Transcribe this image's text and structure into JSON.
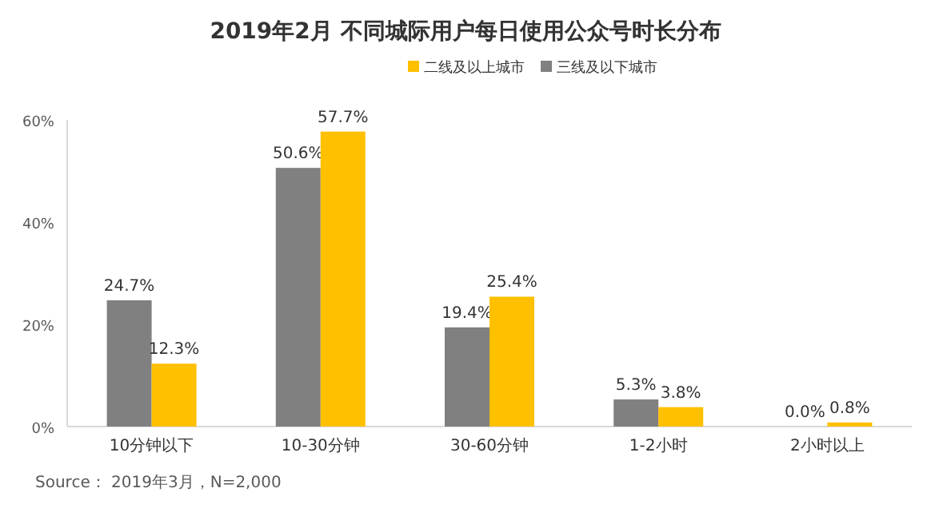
{
  "chart_data": {
    "type": "bar",
    "title": "2019年2月 不同城际用户每日使用公众号时长分布",
    "categories": [
      "10分钟以下",
      "10-30分钟",
      "30-60分钟",
      "1-2小时",
      "2小时以上"
    ],
    "series": [
      {
        "name": "三线及以下城市",
        "color": "#808080",
        "values": [
          24.7,
          50.6,
          19.4,
          5.3,
          0.0
        ]
      },
      {
        "name": "二线及以上城市",
        "color": "#ffc000",
        "values": [
          12.3,
          57.7,
          25.4,
          3.8,
          0.8
        ]
      }
    ],
    "value_labels": [
      [
        "24.7%",
        "50.6%",
        "19.4%",
        "5.3%",
        "0.0%"
      ],
      [
        "12.3%",
        "57.7%",
        "25.4%",
        "3.8%",
        "0.8%"
      ]
    ],
    "ylim": [
      0,
      60
    ],
    "yticks": [
      {
        "value": 0,
        "label": "0%"
      },
      {
        "value": 20,
        "label": "20%"
      },
      {
        "value": 40,
        "label": "40%"
      },
      {
        "value": 60,
        "label": "60%"
      }
    ],
    "legend": "top",
    "grid": false,
    "annotations": [
      "Source： 2019年3月，N=2,000"
    ]
  }
}
